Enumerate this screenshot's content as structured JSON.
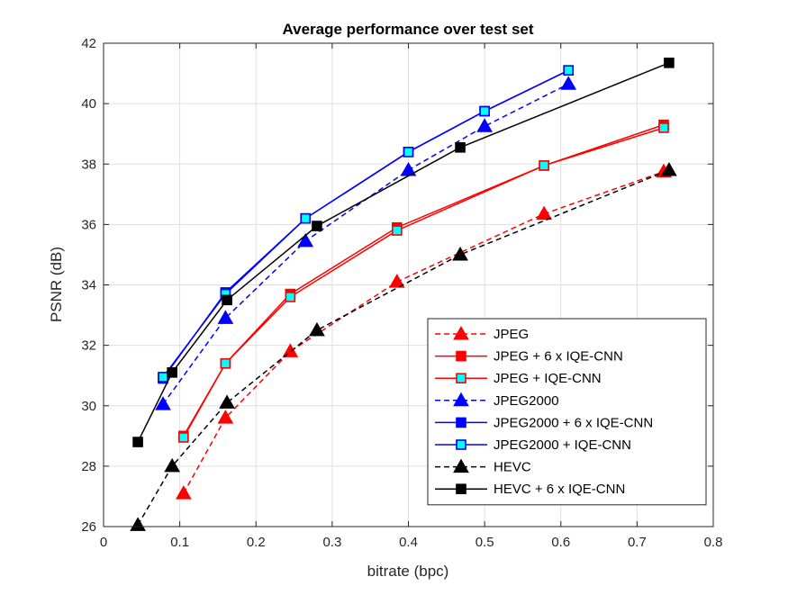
{
  "chart_data": {
    "type": "line",
    "title": "Average performance over test set",
    "xlabel": "bitrate (bpc)",
    "ylabel": "PSNR (dB)",
    "xlim": [
      0,
      0.8
    ],
    "ylim": [
      26,
      42
    ],
    "xticks": [
      0,
      0.1,
      0.2,
      0.3,
      0.4,
      0.5,
      0.6,
      0.7,
      0.8
    ],
    "xtick_labels": [
      "0",
      "0.1",
      "0.2",
      "0.3",
      "0.4",
      "0.5",
      "0.6",
      "0.7",
      "0.8"
    ],
    "yticks": [
      26,
      28,
      30,
      32,
      34,
      36,
      38,
      40,
      42
    ],
    "ytick_labels": [
      "26",
      "28",
      "30",
      "32",
      "34",
      "36",
      "38",
      "40",
      "42"
    ],
    "grid": true,
    "legend_position": "bottom-right",
    "series": [
      {
        "name": "JPEG",
        "color": "#ff0000",
        "line": "dashed",
        "marker": "triangle",
        "marker_fill": "#ff0000",
        "x": [
          0.105,
          0.16,
          0.245,
          0.385,
          0.578,
          0.735
        ],
        "y": [
          27.1,
          29.6,
          31.8,
          34.1,
          36.35,
          37.75
        ]
      },
      {
        "name": "JPEG + 6 x IQE-CNN",
        "color": "#ff0000",
        "line": "solid",
        "marker": "square",
        "marker_fill": "#ff0000",
        "x": [
          0.105,
          0.16,
          0.245,
          0.385,
          0.578,
          0.735
        ],
        "y": [
          29.0,
          31.4,
          33.7,
          35.9,
          37.95,
          39.3
        ]
      },
      {
        "name": "JPEG + IQE-CNN",
        "color": "#ff0000",
        "line": "solid",
        "marker": "square",
        "marker_fill": "#00ffff",
        "x": [
          0.105,
          0.16,
          0.245,
          0.385,
          0.578,
          0.735
        ],
        "y": [
          28.95,
          31.4,
          33.6,
          35.8,
          37.95,
          39.2
        ]
      },
      {
        "name": "JPEG2000",
        "color": "#0000ff",
        "line": "dashed",
        "marker": "triangle",
        "marker_fill": "#0000ff",
        "x": [
          0.078,
          0.16,
          0.265,
          0.4,
          0.5,
          0.61
        ],
        "y": [
          30.05,
          32.9,
          35.45,
          37.8,
          39.25,
          40.65
        ]
      },
      {
        "name": "JPEG2000 + 6 x IQE-CNN",
        "color": "#0000ff",
        "line": "solid",
        "marker": "square",
        "marker_fill": "#0000ff",
        "x": [
          0.078,
          0.16,
          0.265,
          0.4,
          0.5,
          0.61
        ],
        "y": [
          30.9,
          33.75,
          36.2,
          38.4,
          39.75,
          41.1
        ]
      },
      {
        "name": "JPEG2000 + IQE-CNN",
        "color": "#0000ff",
        "line": "solid",
        "marker": "square",
        "marker_fill": "#00ffff",
        "x": [
          0.078,
          0.16,
          0.265,
          0.4,
          0.5,
          0.61
        ],
        "y": [
          30.95,
          33.7,
          36.2,
          38.4,
          39.75,
          41.1
        ]
      },
      {
        "name": "HEVC",
        "color": "#000000",
        "line": "dashed",
        "marker": "triangle",
        "marker_fill": "#000000",
        "x": [
          0.045,
          0.09,
          0.162,
          0.28,
          0.468,
          0.742
        ],
        "y": [
          26.05,
          28.0,
          30.1,
          32.5,
          35.0,
          37.8
        ]
      },
      {
        "name": "HEVC + 6 x IQE-CNN",
        "color": "#000000",
        "line": "solid",
        "marker": "square",
        "marker_fill": "#000000",
        "x": [
          0.045,
          0.09,
          0.162,
          0.28,
          0.468,
          0.742
        ],
        "y": [
          28.8,
          31.1,
          33.5,
          35.95,
          38.55,
          41.35
        ]
      }
    ]
  }
}
